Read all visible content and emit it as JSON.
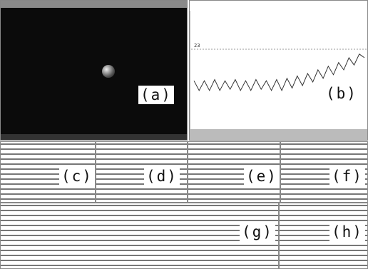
{
  "labels": {
    "a": "(a)",
    "b": "(b)",
    "c": "(c)",
    "d": "(d)",
    "e": "(e)",
    "f": "(f)",
    "g": "(g)",
    "h": "(h)"
  },
  "graph": {
    "ytick": 23,
    "values": [
      20.4,
      19.6,
      20.4,
      19.6,
      20.5,
      19.6,
      20.4,
      19.7,
      20.5,
      19.6,
      20.4,
      19.6,
      20.5,
      19.7,
      20.4,
      19.6,
      20.5,
      19.6,
      20.6,
      19.8,
      20.8,
      20.0,
      21.0,
      20.3,
      21.3,
      20.6,
      21.6,
      20.9,
      21.9,
      21.3,
      22.3,
      21.7,
      22.6,
      22.3
    ]
  }
}
